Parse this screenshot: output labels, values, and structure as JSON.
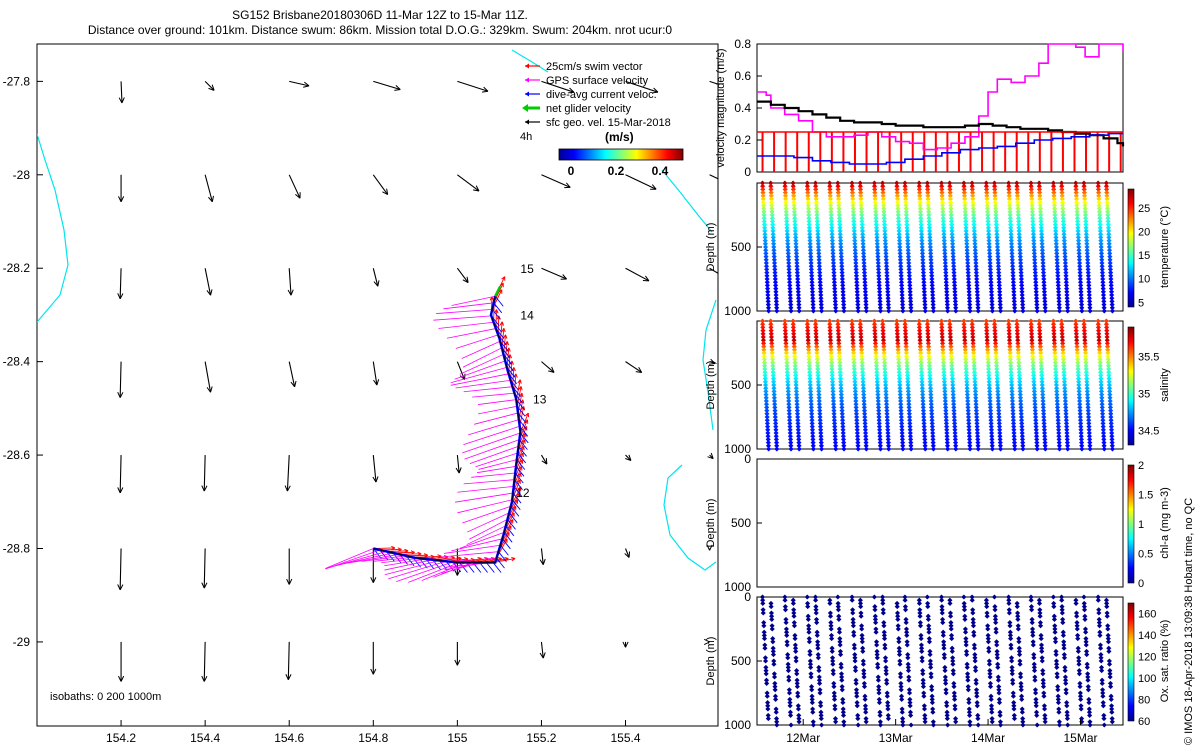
{
  "header": {
    "line1": "SG152 Brisbane20180306D 11-Mar 12Z to 15-Mar 11Z.",
    "line2": "Distance over ground: 101km. Distance swum: 86km. Mission total D.O.G.: 329km. Swum: 204km. nrot ucur:0"
  },
  "colors": {
    "swim": "#ff0000",
    "gps": "#ff00ff",
    "current": "#0000ff",
    "net": "#00cc00",
    "geo": "#000000",
    "isobath": "#00e5ee"
  },
  "copyright": "© IMOS 18-Apr-2018 13:09:38 Hobart time, no QC",
  "chart_data": [
    {
      "type": "quiver-map",
      "xticks": [
        "154.2",
        "154.4",
        "154.6",
        "154.8",
        "155",
        "155.2",
        "155.4"
      ],
      "yticks": [
        "-27.8",
        "-28",
        "-28.2",
        "-28.4",
        "-28.6",
        "-28.8",
        "-29"
      ],
      "xlim": [
        154.0,
        155.62
      ],
      "ylim": [
        -29.18,
        -27.72
      ],
      "legend": [
        "25cm/s swim vector",
        "GPS surface velocity",
        "dive-avg current veloc.",
        "net glider velocity",
        "sfc geo. vel. 15-Mar-2018"
      ],
      "scale_label": "4h",
      "colorbar": {
        "label": "(m/s)",
        "ticks": [
          "0",
          "0.2",
          "0.4"
        ]
      },
      "isobaths_label": "isobaths: 0   200  1000m",
      "day_labels": [
        {
          "label": "15",
          "lon": 155.15,
          "lat": -28.21
        },
        {
          "label": "14",
          "lon": 155.15,
          "lat": -28.31
        },
        {
          "label": "13",
          "lon": 155.18,
          "lat": -28.49
        },
        {
          "label": "12",
          "lon": 155.14,
          "lat": -28.69
        }
      ],
      "track": [
        [
          154.8,
          -28.8
        ],
        [
          154.9,
          -28.82
        ],
        [
          155.0,
          -28.83
        ],
        [
          155.09,
          -28.83
        ],
        [
          155.11,
          -28.77
        ],
        [
          155.13,
          -28.7
        ],
        [
          155.14,
          -28.62
        ],
        [
          155.15,
          -28.55
        ],
        [
          155.14,
          -28.48
        ],
        [
          155.12,
          -28.42
        ],
        [
          155.1,
          -28.35
        ],
        [
          155.08,
          -28.3
        ],
        [
          155.09,
          -28.26
        ]
      ],
      "geo_vectors": {
        "lons": [
          154.2,
          154.4,
          154.6,
          154.8,
          155.0,
          155.2,
          155.4,
          155.6
        ],
        "lats": [
          -27.8,
          -28.0,
          -28.2,
          -28.4,
          -28.6,
          -28.8,
          -29.0
        ],
        "u": [
          [
            0.01,
            0.1,
            0.22,
            0.3,
            0.34,
            0.36,
            0.36,
            0.36
          ],
          [
            0.0,
            0.08,
            0.12,
            0.16,
            0.24,
            0.32,
            0.34,
            0.3
          ],
          [
            -0.01,
            0.06,
            0.02,
            0.05,
            0.12,
            0.28,
            0.26,
            0.2
          ],
          [
            -0.01,
            0.06,
            0.06,
            0.04,
            0.08,
            0.14,
            0.18,
            0.06
          ],
          [
            -0.01,
            -0.01,
            -0.02,
            0.03,
            0.02,
            0.06,
            0.06,
            0.04
          ],
          [
            -0.01,
            -0.01,
            0.0,
            0.0,
            0.0,
            0.02,
            0.04,
            0.0
          ],
          [
            0.0,
            -0.01,
            -0.01,
            0.0,
            0.0,
            0.02,
            0.0,
            0.0
          ]
        ],
        "v": [
          [
            -0.24,
            -0.1,
            -0.05,
            -0.09,
            -0.11,
            -0.12,
            -0.12,
            -0.12
          ],
          [
            -0.3,
            -0.3,
            -0.26,
            -0.22,
            -0.18,
            -0.14,
            -0.16,
            -0.14
          ],
          [
            -0.34,
            -0.3,
            -0.3,
            -0.2,
            -0.16,
            -0.12,
            -0.14,
            -0.12
          ],
          [
            -0.4,
            -0.34,
            -0.28,
            -0.26,
            -0.2,
            -0.12,
            -0.12,
            -0.02
          ],
          [
            -0.42,
            -0.4,
            -0.4,
            -0.3,
            -0.2,
            -0.1,
            -0.06,
            -0.04
          ],
          [
            -0.46,
            -0.44,
            -0.4,
            -0.38,
            -0.3,
            -0.18,
            -0.1,
            -0.02
          ],
          [
            -0.44,
            -0.44,
            -0.42,
            -0.36,
            -0.26,
            -0.18,
            -0.06,
            0.0
          ]
        ]
      }
    },
    {
      "type": "line",
      "ylabel": "velocity magnitude (m/s)",
      "ylim": [
        0,
        0.8
      ],
      "yticks": [
        "0",
        "0.2",
        "0.4",
        "0.6",
        "0.8"
      ],
      "xlim": [
        11.5,
        15.46
      ],
      "series": [
        {
          "color": "#ff00ff",
          "x": [
            11.5,
            11.6,
            11.65,
            11.8,
            11.95,
            12.1,
            12.25,
            12.4,
            12.55,
            12.7,
            12.85,
            13.0,
            13.15,
            13.3,
            13.45,
            13.6,
            13.75,
            13.9,
            14.0,
            14.1,
            14.25,
            14.4,
            14.55,
            14.65,
            14.8,
            14.95,
            15.05,
            15.2,
            15.35,
            15.46
          ],
          "y": [
            0.5,
            0.48,
            0.4,
            0.36,
            0.32,
            0.25,
            0.22,
            0.22,
            0.23,
            0.25,
            0.22,
            0.19,
            0.18,
            0.14,
            0.15,
            0.18,
            0.22,
            0.35,
            0.5,
            0.58,
            0.56,
            0.6,
            0.68,
            0.8,
            0.8,
            0.78,
            0.72,
            0.8,
            0.8,
            0.75
          ]
        },
        {
          "color": "#000000",
          "x": [
            11.5,
            11.65,
            11.8,
            11.95,
            12.1,
            12.25,
            12.4,
            12.55,
            12.7,
            12.85,
            13.0,
            13.15,
            13.3,
            13.45,
            13.6,
            13.75,
            13.9,
            14.05,
            14.2,
            14.35,
            14.5,
            14.65,
            14.8,
            14.95,
            15.1,
            15.25,
            15.4,
            15.46
          ],
          "y": [
            0.44,
            0.42,
            0.4,
            0.38,
            0.36,
            0.34,
            0.32,
            0.31,
            0.31,
            0.3,
            0.29,
            0.29,
            0.28,
            0.28,
            0.28,
            0.29,
            0.3,
            0.29,
            0.28,
            0.27,
            0.27,
            0.26,
            0.25,
            0.24,
            0.23,
            0.21,
            0.18,
            0.16
          ]
        },
        {
          "color": "#0000ff",
          "x": [
            11.5,
            11.7,
            11.9,
            12.1,
            12.3,
            12.5,
            12.7,
            12.9,
            13.1,
            13.3,
            13.5,
            13.7,
            13.9,
            14.1,
            14.3,
            14.5,
            14.7,
            14.9,
            15.1,
            15.3,
            15.46
          ],
          "y": [
            0.1,
            0.1,
            0.09,
            0.07,
            0.06,
            0.05,
            0.05,
            0.06,
            0.08,
            0.1,
            0.12,
            0.14,
            0.15,
            0.16,
            0.18,
            0.2,
            0.21,
            0.22,
            0.23,
            0.24,
            0.24
          ]
        },
        {
          "color": "#ff0000",
          "x": [
            11.5,
            15.46
          ],
          "y": [
            0.25,
            0.25
          ]
        }
      ]
    },
    {
      "type": "scatter",
      "ylabel": "Depth (m)",
      "colorbar_label": "temperature (°C)",
      "colorbar_ticks": [
        "5",
        "10",
        "15",
        "20",
        "25"
      ],
      "clim": [
        4,
        29
      ],
      "ylim": [
        1000,
        0
      ],
      "yticks": [
        "500",
        "1000"
      ],
      "profile_count": 32,
      "surface_value": 28,
      "bottom_value": 5,
      "profile": "exp"
    },
    {
      "type": "scatter",
      "ylabel": "Depth (m)",
      "colorbar_label": "salinity",
      "colorbar_ticks": [
        "34.5",
        "35",
        "35.5"
      ],
      "clim": [
        34.3,
        35.9
      ],
      "ylim": [
        1000,
        0
      ],
      "yticks": [
        "500",
        "1000"
      ],
      "profile_count": 32,
      "surface_value": 35.6,
      "max_value": 35.8,
      "bottom_value": 34.45,
      "profile": "sal"
    },
    {
      "type": "scatter",
      "ylabel": "Depth (m)",
      "colorbar_label": "chl-a (mg m-3)",
      "colorbar_ticks": [
        "0",
        "0.5",
        "1",
        "1.5",
        "2"
      ],
      "clim": [
        0,
        2
      ],
      "ylim": [
        1000,
        0
      ],
      "yticks": [
        "0",
        "500",
        "1000"
      ],
      "profile_count": 0
    },
    {
      "type": "scatter",
      "ylabel": "Depth (m)",
      "colorbar_label": "Ox. sat. ratio (%)",
      "colorbar_ticks": [
        "60",
        "80",
        "100",
        "120",
        "140",
        "160"
      ],
      "clim": [
        60,
        170
      ],
      "ylim": [
        1000,
        0
      ],
      "yticks": [
        "0",
        "500",
        "1000"
      ],
      "profile_count": 32,
      "uniform_value": 60,
      "xticks": [
        "12Mar",
        "13Mar",
        "14Mar",
        "15Mar"
      ],
      "xtick_values": [
        12,
        13,
        14,
        15
      ],
      "xlim": [
        11.5,
        15.46
      ]
    }
  ]
}
